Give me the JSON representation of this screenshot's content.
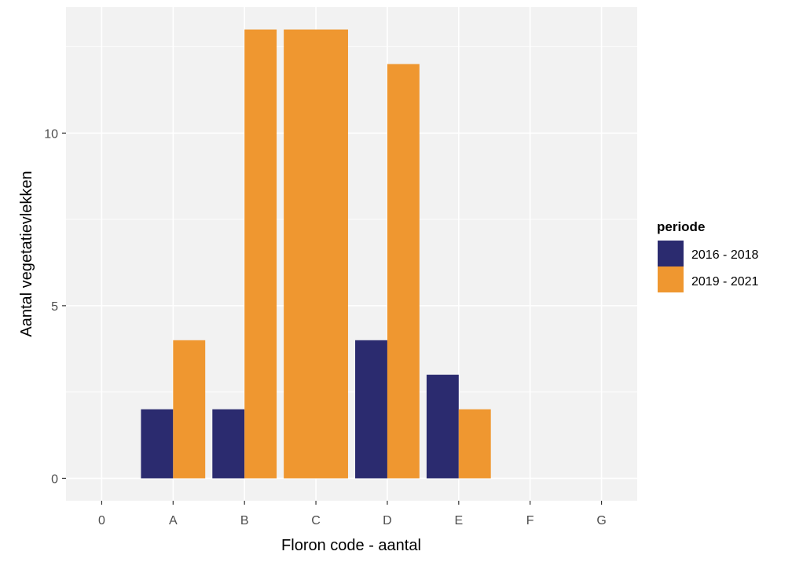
{
  "chart_data": {
    "type": "bar",
    "categories": [
      "0",
      "A",
      "B",
      "C",
      "D",
      "E",
      "F",
      "G"
    ],
    "series": [
      {
        "name": "2016 - 2018",
        "color": "#2b2b6f",
        "values": [
          0,
          2,
          2,
          0,
          4,
          3,
          0,
          0
        ]
      },
      {
        "name": "2019 - 2021",
        "color": "#ef9730",
        "values": [
          0,
          4,
          13,
          13,
          12,
          2,
          0,
          0
        ]
      }
    ],
    "xlabel": "Floron code - aantal",
    "ylabel": "Aantal vegetatievlekken",
    "yticks": [
      0,
      5,
      10
    ],
    "ylim": [
      -0.65,
      13.65
    ],
    "grid": true,
    "legend": {
      "title": "periode",
      "position": "right"
    }
  }
}
